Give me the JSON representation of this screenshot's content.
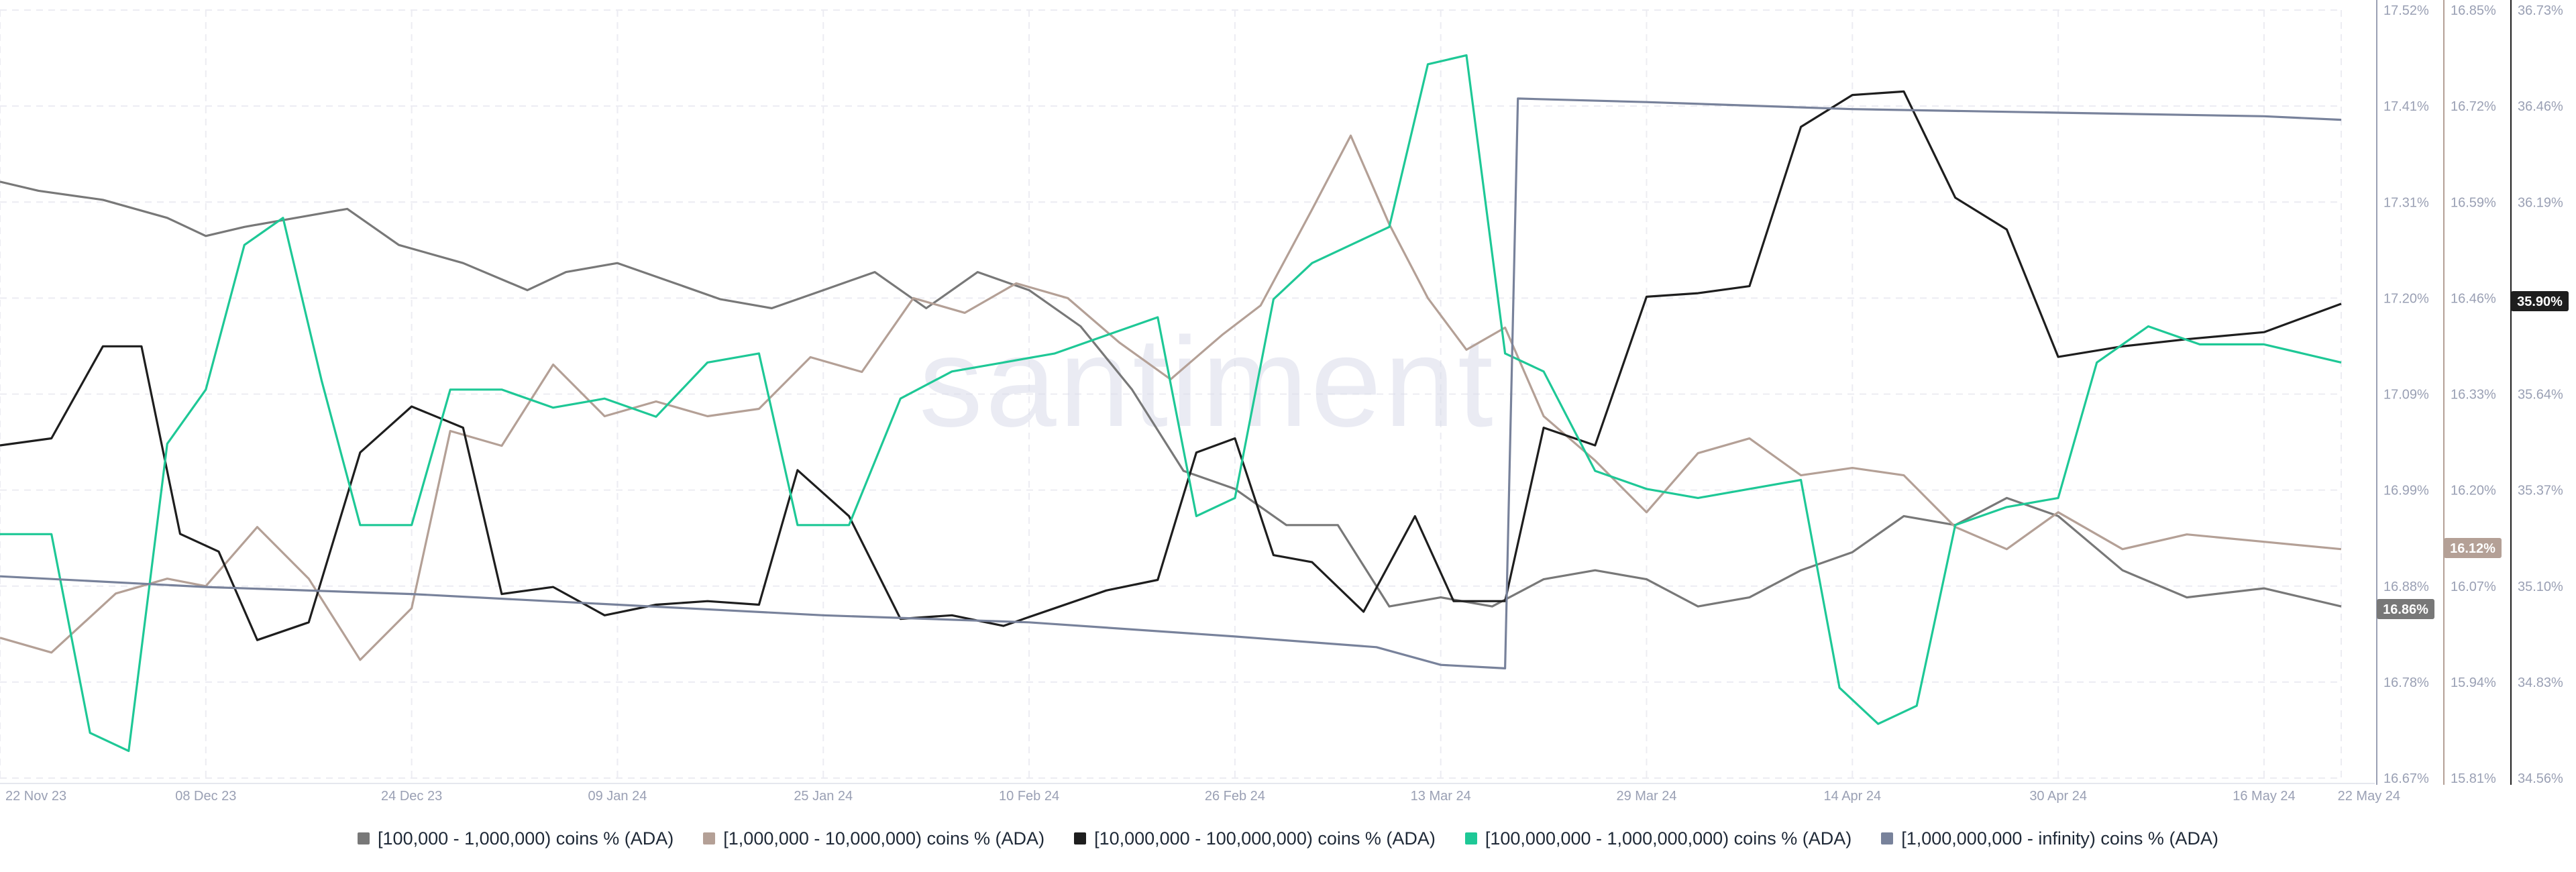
{
  "watermark": "santiment",
  "legend": [
    {
      "label": "[100,000  - 1,000,000) coins % (ADA)",
      "color": "#787878"
    },
    {
      "label": "[1,000,000 - 10,000,000) coins % (ADA)",
      "color": "#b4a096"
    },
    {
      "label": "[10,000,000 - 100,000,000) coins % (ADA)",
      "color": "#1e1e1e"
    },
    {
      "label": "[100,000,000 - 1,000,000,000) coins % (ADA)",
      "color": "#1ec896"
    },
    {
      "label": "[1,000,000,000 - infinity) coins % (ADA)",
      "color": "#78829b"
    }
  ],
  "badges": {
    "s1": "16.86%",
    "s2": "16.12%",
    "s3": "35.90%"
  },
  "chart_data": {
    "type": "line",
    "x_ticks": [
      "22 Nov 23",
      "08 Dec 23",
      "24 Dec 23",
      "09 Jan 24",
      "25 Jan 24",
      "10 Feb 24",
      "26 Feb 24",
      "13 Mar 24",
      "29 Mar 24",
      "14 Apr 24",
      "30 Apr 24",
      "16 May 24",
      "22 May 24"
    ],
    "x_range": [
      "22 Nov 23",
      "22 May 24"
    ],
    "grid": true,
    "legend_position": "bottom",
    "axes": [
      {
        "id": "a1",
        "ticks": [
          "17.52%",
          "17.41%",
          "17.31%",
          "17.20%",
          "17.09%",
          "16.99%",
          "16.88%",
          "16.78%",
          "16.67%"
        ],
        "range": [
          16.67,
          17.52
        ]
      },
      {
        "id": "a2",
        "ticks": [
          "16.85%",
          "16.72%",
          "16.59%",
          "16.46%",
          "16.33%",
          "16.20%",
          "16.07%",
          "15.94%",
          "15.81%"
        ],
        "range": [
          15.81,
          16.85
        ]
      },
      {
        "id": "a3",
        "ticks": [
          "36.73%",
          "36.46%",
          "36.19%",
          "35.90%",
          "35.64%",
          "35.37%",
          "35.10%",
          "34.83%",
          "34.56%"
        ],
        "range": [
          34.56,
          36.73
        ]
      }
    ],
    "series": [
      {
        "name": "[100,000  - 1,000,000) coins % (ADA)",
        "axis": "a1",
        "color": "#787878",
        "points": [
          [
            "22 Nov 23",
            17.33
          ],
          [
            "25 Nov 23",
            17.32
          ],
          [
            "30 Nov 23",
            17.31
          ],
          [
            "05 Dec 23",
            17.29
          ],
          [
            "08 Dec 23",
            17.27
          ],
          [
            "11 Dec 23",
            17.28
          ],
          [
            "15 Dec 23",
            17.29
          ],
          [
            "19 Dec 23",
            17.3
          ],
          [
            "23 Dec 23",
            17.26
          ],
          [
            "28 Dec 23",
            17.24
          ],
          [
            "02 Jan 24",
            17.21
          ],
          [
            "05 Jan 24",
            17.23
          ],
          [
            "09 Jan 24",
            17.24
          ],
          [
            "13 Jan 24",
            17.22
          ],
          [
            "17 Jan 24",
            17.2
          ],
          [
            "21 Jan 24",
            17.19
          ],
          [
            "25 Jan 24",
            17.21
          ],
          [
            "29 Jan 24",
            17.23
          ],
          [
            "02 Feb 24",
            17.19
          ],
          [
            "06 Feb 24",
            17.23
          ],
          [
            "10 Feb 24",
            17.21
          ],
          [
            "14 Feb 24",
            17.17
          ],
          [
            "18 Feb 24",
            17.1
          ],
          [
            "22 Feb 24",
            17.01
          ],
          [
            "26 Feb 24",
            16.99
          ],
          [
            "01 Mar 24",
            16.95
          ],
          [
            "05 Mar 24",
            16.95
          ],
          [
            "09 Mar 24",
            16.86
          ],
          [
            "13 Mar 24",
            16.87
          ],
          [
            "17 Mar 24",
            16.86
          ],
          [
            "21 Mar 24",
            16.89
          ],
          [
            "25 Mar 24",
            16.9
          ],
          [
            "29 Mar 24",
            16.89
          ],
          [
            "02 Apr 24",
            16.86
          ],
          [
            "06 Apr 24",
            16.87
          ],
          [
            "10 Apr 24",
            16.9
          ],
          [
            "14 Apr 24",
            16.92
          ],
          [
            "18 Apr 24",
            16.96
          ],
          [
            "22 Apr 24",
            16.95
          ],
          [
            "26 Apr 24",
            16.98
          ],
          [
            "30 Apr 24",
            16.96
          ],
          [
            "05 May 24",
            16.9
          ],
          [
            "10 May 24",
            16.87
          ],
          [
            "16 May 24",
            16.88
          ],
          [
            "22 May 24",
            16.86
          ]
        ]
      },
      {
        "name": "[1,000,000 - 10,000,000) coins % (ADA)",
        "axis": "a2",
        "color": "#b4a096",
        "points": [
          [
            "22 Nov 23",
            16.0
          ],
          [
            "26 Nov 23",
            15.98
          ],
          [
            "01 Dec 23",
            16.06
          ],
          [
            "05 Dec 23",
            16.08
          ],
          [
            "08 Dec 23",
            16.07
          ],
          [
            "12 Dec 23",
            16.15
          ],
          [
            "16 Dec 23",
            16.08
          ],
          [
            "20 Dec 23",
            15.97
          ],
          [
            "24 Dec 23",
            16.04
          ],
          [
            "27 Dec 23",
            16.28
          ],
          [
            "31 Dec 23",
            16.26
          ],
          [
            "04 Jan 24",
            16.37
          ],
          [
            "08 Jan 24",
            16.3
          ],
          [
            "12 Jan 24",
            16.32
          ],
          [
            "16 Jan 24",
            16.3
          ],
          [
            "20 Jan 24",
            16.31
          ],
          [
            "24 Jan 24",
            16.38
          ],
          [
            "28 Jan 24",
            16.36
          ],
          [
            "01 Feb 24",
            16.46
          ],
          [
            "05 Feb 24",
            16.44
          ],
          [
            "09 Feb 24",
            16.48
          ],
          [
            "13 Feb 24",
            16.46
          ],
          [
            "17 Feb 24",
            16.4
          ],
          [
            "21 Feb 24",
            16.35
          ],
          [
            "25 Feb 24",
            16.41
          ],
          [
            "28 Feb 24",
            16.45
          ],
          [
            "03 Mar 24",
            16.58
          ],
          [
            "06 Mar 24",
            16.68
          ],
          [
            "09 Mar 24",
            16.56
          ],
          [
            "12 Mar 24",
            16.46
          ],
          [
            "15 Mar 24",
            16.39
          ],
          [
            "18 Mar 24",
            16.42
          ],
          [
            "21 Mar 24",
            16.3
          ],
          [
            "25 Mar 24",
            16.24
          ],
          [
            "29 Mar 24",
            16.17
          ],
          [
            "02 Apr 24",
            16.25
          ],
          [
            "06 Apr 24",
            16.27
          ],
          [
            "10 Apr 24",
            16.22
          ],
          [
            "14 Apr 24",
            16.23
          ],
          [
            "18 Apr 24",
            16.22
          ],
          [
            "22 Apr 24",
            16.15
          ],
          [
            "26 Apr 24",
            16.12
          ],
          [
            "30 Apr 24",
            16.17
          ],
          [
            "05 May 24",
            16.12
          ],
          [
            "10 May 24",
            16.14
          ],
          [
            "16 May 24",
            16.13
          ],
          [
            "22 May 24",
            16.12
          ]
        ]
      },
      {
        "name": "[10,000,000 - 100,000,000) coins % (ADA)",
        "axis": "a3",
        "color": "#1e1e1e",
        "points": [
          [
            "22 Nov 23",
            35.5
          ],
          [
            "26 Nov 23",
            35.52
          ],
          [
            "30 Nov 23",
            35.78
          ],
          [
            "03 Dec 23",
            35.78
          ],
          [
            "06 Dec 23",
            35.25
          ],
          [
            "09 Dec 23",
            35.2
          ],
          [
            "12 Dec 23",
            34.95
          ],
          [
            "16 Dec 23",
            35.0
          ],
          [
            "20 Dec 23",
            35.48
          ],
          [
            "24 Dec 23",
            35.61
          ],
          [
            "28 Dec 23",
            35.55
          ],
          [
            "31 Dec 23",
            35.08
          ],
          [
            "04 Jan 24",
            35.1
          ],
          [
            "08 Jan 24",
            35.02
          ],
          [
            "12 Jan 24",
            35.05
          ],
          [
            "16 Jan 24",
            35.06
          ],
          [
            "20 Jan 24",
            35.05
          ],
          [
            "23 Jan 24",
            35.43
          ],
          [
            "27 Jan 24",
            35.3
          ],
          [
            "31 Jan 24",
            35.01
          ],
          [
            "04 Feb 24",
            35.02
          ],
          [
            "08 Feb 24",
            34.99
          ],
          [
            "12 Feb 24",
            35.04
          ],
          [
            "16 Feb 24",
            35.09
          ],
          [
            "20 Feb 24",
            35.12
          ],
          [
            "23 Feb 24",
            35.48
          ],
          [
            "26 Feb 24",
            35.52
          ],
          [
            "29 Feb 24",
            35.19
          ],
          [
            "03 Mar 24",
            35.17
          ],
          [
            "07 Mar 24",
            35.03
          ],
          [
            "11 Mar 24",
            35.3
          ],
          [
            "14 Mar 24",
            35.06
          ],
          [
            "18 Mar 24",
            35.06
          ],
          [
            "21 Mar 24",
            35.55
          ],
          [
            "25 Mar 24",
            35.5
          ],
          [
            "29 Mar 24",
            35.92
          ],
          [
            "02 Apr 24",
            35.93
          ],
          [
            "06 Apr 24",
            35.95
          ],
          [
            "10 Apr 24",
            36.4
          ],
          [
            "14 Apr 24",
            36.49
          ],
          [
            "18 Apr 24",
            36.5
          ],
          [
            "22 Apr 24",
            36.2
          ],
          [
            "26 Apr 24",
            36.11
          ],
          [
            "30 Apr 24",
            35.75
          ],
          [
            "05 May 24",
            35.78
          ],
          [
            "10 May 24",
            35.8
          ],
          [
            "16 May 24",
            35.82
          ],
          [
            "22 May 24",
            35.9
          ]
        ]
      },
      {
        "name": "[100,000,000 - 1,000,000,000) coins % (ADA)",
        "axis": "a1",
        "color": "#1ec896",
        "points": [
          [
            "22 Nov 23",
            16.94
          ],
          [
            "26 Nov 23",
            16.94
          ],
          [
            "29 Nov 23",
            16.72
          ],
          [
            "02 Dec 23",
            16.7
          ],
          [
            "05 Dec 23",
            17.04
          ],
          [
            "08 Dec 23",
            17.1
          ],
          [
            "11 Dec 23",
            17.26
          ],
          [
            "14 Dec 23",
            17.29
          ],
          [
            "17 Dec 23",
            17.11
          ],
          [
            "20 Dec 23",
            16.95
          ],
          [
            "24 Dec 23",
            16.95
          ],
          [
            "27 Dec 23",
            17.1
          ],
          [
            "31 Dec 23",
            17.1
          ],
          [
            "04 Jan 24",
            17.08
          ],
          [
            "08 Jan 24",
            17.09
          ],
          [
            "12 Jan 24",
            17.07
          ],
          [
            "16 Jan 24",
            17.13
          ],
          [
            "20 Jan 24",
            17.14
          ],
          [
            "23 Jan 24",
            16.95
          ],
          [
            "27 Jan 24",
            16.95
          ],
          [
            "31 Jan 24",
            17.09
          ],
          [
            "04 Feb 24",
            17.12
          ],
          [
            "08 Feb 24",
            17.13
          ],
          [
            "12 Feb 24",
            17.14
          ],
          [
            "16 Feb 24",
            17.16
          ],
          [
            "20 Feb 24",
            17.18
          ],
          [
            "23 Feb 24",
            16.96
          ],
          [
            "26 Feb 24",
            16.98
          ],
          [
            "29 Feb 24",
            17.2
          ],
          [
            "03 Mar 24",
            17.24
          ],
          [
            "06 Mar 24",
            17.26
          ],
          [
            "09 Mar 24",
            17.28
          ],
          [
            "12 Mar 24",
            17.46
          ],
          [
            "15 Mar 24",
            17.47
          ],
          [
            "18 Mar 24",
            17.14
          ],
          [
            "21 Mar 24",
            17.12
          ],
          [
            "25 Mar 24",
            17.01
          ],
          [
            "29 Mar 24",
            16.99
          ],
          [
            "02 Apr 24",
            16.98
          ],
          [
            "06 Apr 24",
            16.99
          ],
          [
            "10 Apr 24",
            17.0
          ],
          [
            "13 Apr 24",
            16.77
          ],
          [
            "16 Apr 24",
            16.73
          ],
          [
            "19 Apr 24",
            16.75
          ],
          [
            "22 Apr 24",
            16.95
          ],
          [
            "26 Apr 24",
            16.97
          ],
          [
            "30 Apr 24",
            16.98
          ],
          [
            "03 May 24",
            17.13
          ],
          [
            "07 May 24",
            17.17
          ],
          [
            "11 May 24",
            17.15
          ],
          [
            "16 May 24",
            17.15
          ],
          [
            "22 May 24",
            17.13
          ]
        ]
      },
      {
        "name": "[1,000,000,000 - infinity) coins % (ADA)",
        "axis": "a3",
        "color": "#78829b",
        "points": [
          [
            "22 Nov 23",
            35.13
          ],
          [
            "08 Dec 23",
            35.1
          ],
          [
            "24 Dec 23",
            35.08
          ],
          [
            "09 Jan 24",
            35.05
          ],
          [
            "25 Jan 24",
            35.02
          ],
          [
            "10 Feb 24",
            35.0
          ],
          [
            "26 Feb 24",
            34.96
          ],
          [
            "08 Mar 24",
            34.93
          ],
          [
            "13 Mar 24",
            34.88
          ],
          [
            "18 Mar 24",
            34.87
          ],
          [
            "19 Mar 24",
            36.48
          ],
          [
            "29 Mar 24",
            36.47
          ],
          [
            "14 Apr 24",
            36.45
          ],
          [
            "30 Apr 24",
            36.44
          ],
          [
            "16 May 24",
            36.43
          ],
          [
            "22 May 24",
            36.42
          ]
        ]
      }
    ]
  }
}
